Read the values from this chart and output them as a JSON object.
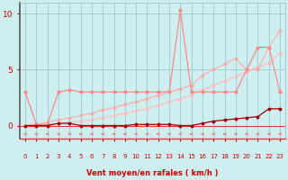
{
  "title": "",
  "xlabel": "Vent moyen/en rafales ( km/h )",
  "ylabel": "",
  "background_color": "#ceeef0",
  "grid_color": "#99cccc",
  "xlim": [
    -0.5,
    23.5
  ],
  "ylim": [
    -1.2,
    11
  ],
  "yticks": [
    0,
    5,
    10
  ],
  "xticks": [
    0,
    1,
    2,
    3,
    4,
    5,
    6,
    7,
    8,
    9,
    10,
    11,
    12,
    13,
    14,
    15,
    16,
    17,
    18,
    19,
    20,
    21,
    22,
    23
  ],
  "x": [
    0,
    1,
    2,
    3,
    4,
    5,
    6,
    7,
    8,
    9,
    10,
    11,
    12,
    13,
    14,
    15,
    16,
    17,
    18,
    19,
    20,
    21,
    22,
    23
  ],
  "series_rafales": [
    3.0,
    0.1,
    0.1,
    3.0,
    3.2,
    3.0,
    3.0,
    3.0,
    3.0,
    3.0,
    3.0,
    3.0,
    3.0,
    3.0,
    10.3,
    3.0,
    3.0,
    3.0,
    3.0,
    3.0,
    5.0,
    7.0,
    7.0,
    3.0
  ],
  "series_moyen": [
    0.0,
    0.0,
    0.0,
    0.2,
    0.2,
    0.0,
    0.0,
    0.0,
    0.0,
    0.0,
    0.1,
    0.1,
    0.1,
    0.1,
    0.0,
    0.0,
    0.2,
    0.4,
    0.5,
    0.6,
    0.7,
    0.8,
    1.5,
    1.5
  ],
  "series_trend1": [
    0.0,
    0.1,
    0.3,
    0.5,
    0.7,
    0.9,
    1.1,
    1.4,
    1.6,
    1.9,
    2.1,
    2.4,
    2.7,
    3.0,
    3.3,
    3.6,
    4.5,
    5.0,
    5.5,
    6.0,
    5.0,
    5.0,
    7.0,
    8.5
  ],
  "series_trend2": [
    0.0,
    0.05,
    0.1,
    0.2,
    0.3,
    0.4,
    0.5,
    0.7,
    0.9,
    1.1,
    1.3,
    1.5,
    1.8,
    2.1,
    2.4,
    2.7,
    3.2,
    3.6,
    4.0,
    4.4,
    4.8,
    5.2,
    5.6,
    6.5
  ],
  "color_rafales": "#ff8888",
  "color_moyen": "#990000",
  "color_trend1": "#ffaaaa",
  "color_trend2": "#ffbbbb",
  "tick_color": "#cc0000",
  "label_color": "#cc0000",
  "hline_color": "#ff3333",
  "arrow_color": "#ff6666",
  "left_spine_color": "#555555"
}
